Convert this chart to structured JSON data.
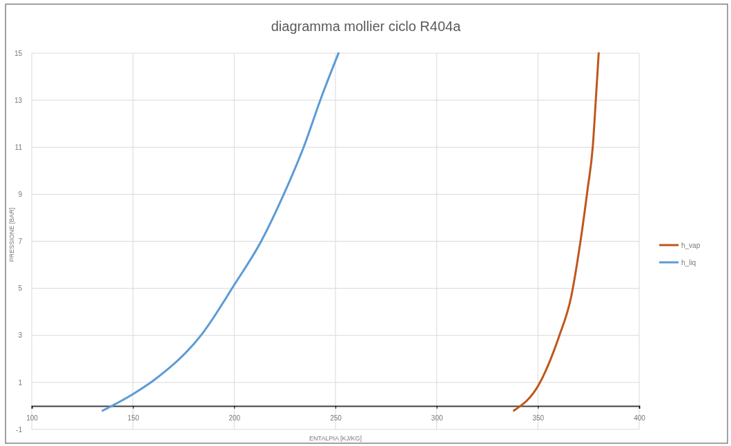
{
  "chart_data": {
    "type": "line",
    "title": "diagramma mollier ciclo R404a",
    "xlabel": "ENTALPIA [KJ/KG]",
    "ylabel": "PRESSIONE [BAR]",
    "xlim": [
      100,
      400
    ],
    "xticks": [
      100,
      150,
      200,
      250,
      300,
      350,
      400
    ],
    "ylim": [
      -1,
      15
    ],
    "yticks": [
      -1,
      1,
      3,
      5,
      7,
      9,
      11,
      13,
      15
    ],
    "grid": true,
    "legend": "right",
    "marker": "none",
    "line_style": "solid",
    "series": [
      {
        "name": "h_vap",
        "color": "#c0561a",
        "x": [
          338.1,
          350.4,
          360.4,
          366.3,
          371,
          374.5,
          377.1,
          378.6,
          380
        ],
        "values": [
          -0.2,
          0.9,
          2.95,
          4.6,
          7,
          9.2,
          11.05,
          13.05,
          15
        ]
      },
      {
        "name": "h_liq",
        "color": "#5b9bd5",
        "x": [
          135,
          149.9,
          160.4,
          184,
          200.4,
          213.3,
          225,
          234.5,
          242.7,
          251.5
        ],
        "values": [
          -0.2,
          0.5,
          1.1,
          3.05,
          5.2,
          7,
          9.1,
          11.05,
          13.05,
          15
        ]
      }
    ]
  }
}
